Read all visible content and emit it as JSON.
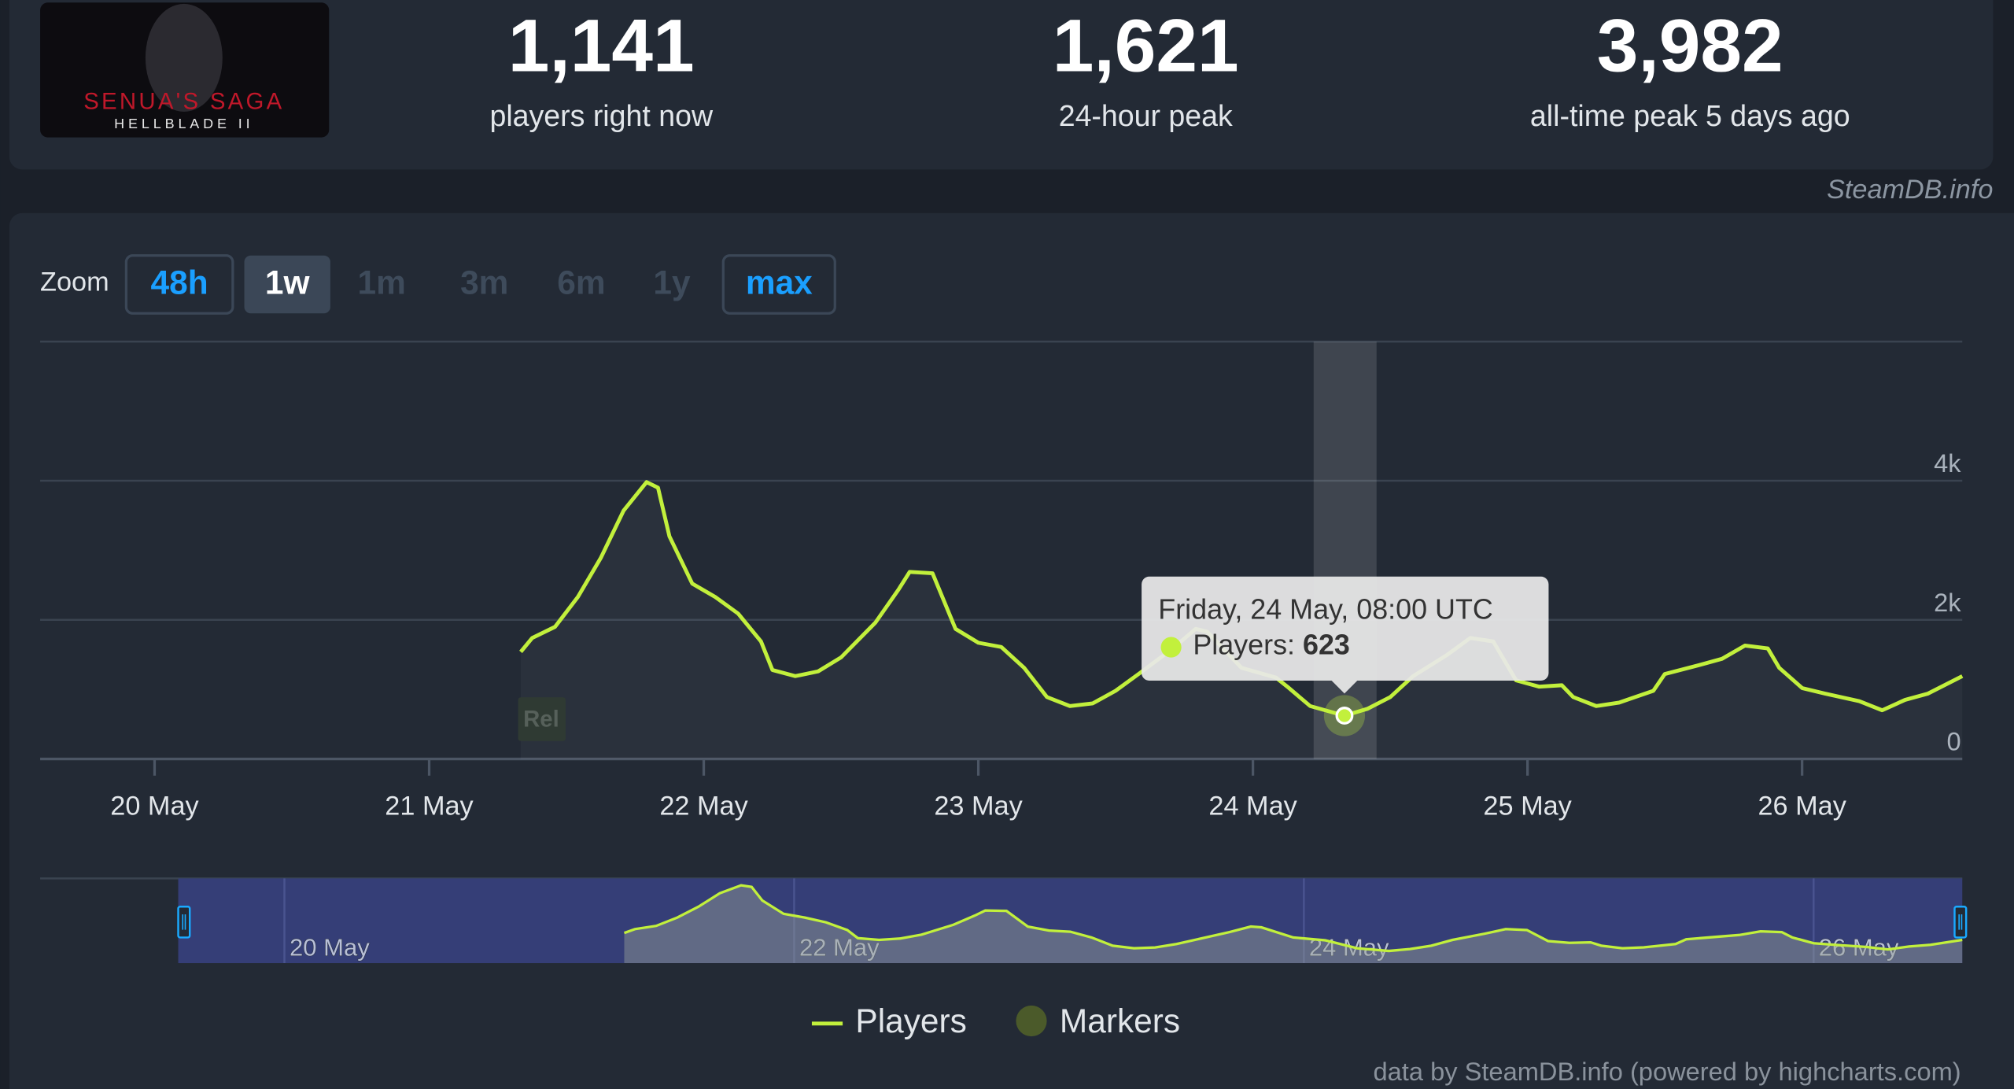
{
  "game": {
    "title": "SENUA'S SAGA",
    "subtitle": "HELLBLADE II"
  },
  "stats": [
    {
      "value": "1,141",
      "label": "players right now"
    },
    {
      "value": "1,621",
      "label": "24-hour peak"
    },
    {
      "value": "3,982",
      "label": "all-time peak 5 days ago"
    }
  ],
  "watermark": "SteamDB.info",
  "zoom": {
    "label": "Zoom",
    "buttons": [
      "48h",
      "1w",
      "1m",
      "3m",
      "6m",
      "1y",
      "max"
    ]
  },
  "credits": "data by SteamDB.info (powered by highcharts.com)",
  "chart_data": {
    "type": "line",
    "x": [
      "21 May 08:00",
      "21 May 09:00",
      "21 May 11:00",
      "21 May 13:00",
      "21 May 15:00",
      "21 May 17:00",
      "21 May 19:00",
      "21 May 20:00",
      "21 May 21:00",
      "21 May 23:00",
      "22 May 01:00",
      "22 May 03:00",
      "22 May 05:00",
      "22 May 06:00",
      "22 May 08:00",
      "22 May 10:00",
      "22 May 12:00",
      "22 May 15:00",
      "22 May 17:00",
      "22 May 18:00",
      "22 May 20:00",
      "22 May 22:00",
      "23 May 00:00",
      "23 May 02:00",
      "23 May 04:00",
      "23 May 06:00",
      "23 May 08:00",
      "23 May 10:00",
      "23 May 12:00",
      "23 May 14:00",
      "23 May 17:00",
      "23 May 19:00",
      "23 May 20:00",
      "23 May 23:00",
      "24 May 02:00",
      "24 May 03:00",
      "24 May 05:00",
      "24 May 08:00",
      "24 May 10:00",
      "24 May 12:00",
      "24 May 14:00",
      "24 May 17:00",
      "24 May 19:00",
      "24 May 21:00",
      "24 May 23:00",
      "25 May 01:00",
      "25 May 03:00",
      "25 May 04:00",
      "25 May 06:00",
      "25 May 08:00",
      "25 May 11:00",
      "25 May 12:00",
      "25 May 15:00",
      "25 May 17:00",
      "25 May 19:00",
      "25 May 21:00",
      "25 May 22:00",
      "26 May 00:00",
      "26 May 02:00",
      "26 May 05:00",
      "26 May 07:00",
      "26 May 09:00",
      "26 May 11:00",
      "26 May 14:00"
    ],
    "series": [
      {
        "name": "Players",
        "color": "#c2f03c",
        "values": [
          1540,
          1740,
          1900,
          2330,
          2890,
          3570,
          3980,
          3900,
          3200,
          2520,
          2330,
          2090,
          1690,
          1280,
          1190,
          1260,
          1460,
          1960,
          2430,
          2690,
          2670,
          1870,
          1670,
          1610,
          1310,
          890,
          760,
          800,
          980,
          1220,
          1590,
          1870,
          1830,
          1310,
          1170,
          1040,
          760,
          623,
          720,
          890,
          1190,
          1500,
          1740,
          1690,
          1130,
          1040,
          1060,
          890,
          760,
          810,
          980,
          1220,
          1350,
          1440,
          1630,
          1590,
          1310,
          1020,
          940,
          830,
          700,
          850,
          940,
          1190
        ]
      },
      {
        "name": "Markers",
        "color": "#4b5a2a"
      }
    ],
    "markers": [
      {
        "label": "Rel",
        "x": "21 May 08:00"
      }
    ],
    "xlim": [
      "19 May 14:00",
      "26 May 14:00"
    ],
    "xticks": [
      "20 May",
      "21 May",
      "22 May",
      "23 May",
      "24 May",
      "25 May",
      "26 May"
    ],
    "ylim": [
      0,
      6000
    ],
    "yticks": [
      0,
      {
        "value": 2000,
        "label": "2k"
      },
      {
        "value": 4000,
        "label": "4k"
      }
    ],
    "grid": true,
    "tooltip": {
      "title": "Friday, 24 May, 08:00 UTC",
      "label": "Players:"
    },
    "navigator": {
      "xlim": [
        "19 May 01:00",
        "26 May 14:00"
      ],
      "xticks": [
        "20 May",
        "22 May",
        "24 May",
        "26 May"
      ],
      "ylim": [
        0,
        4200
      ],
      "selection": [
        "19 May 14:00",
        "26 May 14:00"
      ]
    },
    "legend": "bottom"
  }
}
